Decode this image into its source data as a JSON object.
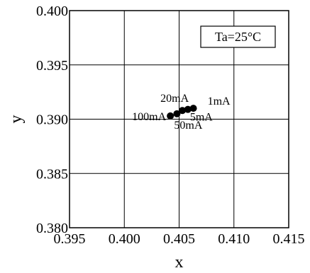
{
  "chart_data": {
    "type": "scatter",
    "title": "",
    "xlabel": "x",
    "ylabel": "y",
    "xlim": [
      0.395,
      0.415
    ],
    "ylim": [
      0.38,
      0.4
    ],
    "x_ticks": [
      0.395,
      0.4,
      0.405,
      0.41,
      0.415
    ],
    "y_ticks": [
      0.38,
      0.385,
      0.39,
      0.395,
      0.4
    ],
    "x_tick_labels": [
      "0.395",
      "0.400",
      "0.405",
      "0.410",
      "0.415"
    ],
    "y_tick_labels": [
      "0.380",
      "0.385",
      "0.390",
      "0.395",
      "0.400"
    ],
    "grid": true,
    "annotation": "Ta=25°C",
    "points": [
      {
        "label": "100mA",
        "x": 0.4042,
        "y": 0.3903
      },
      {
        "label": "50mA",
        "x": 0.4048,
        "y": 0.3905
      },
      {
        "label": "20mA",
        "x": 0.4053,
        "y": 0.3908
      },
      {
        "label": "5mA",
        "x": 0.4058,
        "y": 0.3909
      },
      {
        "label": "1mA",
        "x": 0.4063,
        "y": 0.391
      }
    ],
    "colors": {
      "marker": "#000000",
      "axis": "#000000",
      "grid": "#000000"
    }
  }
}
